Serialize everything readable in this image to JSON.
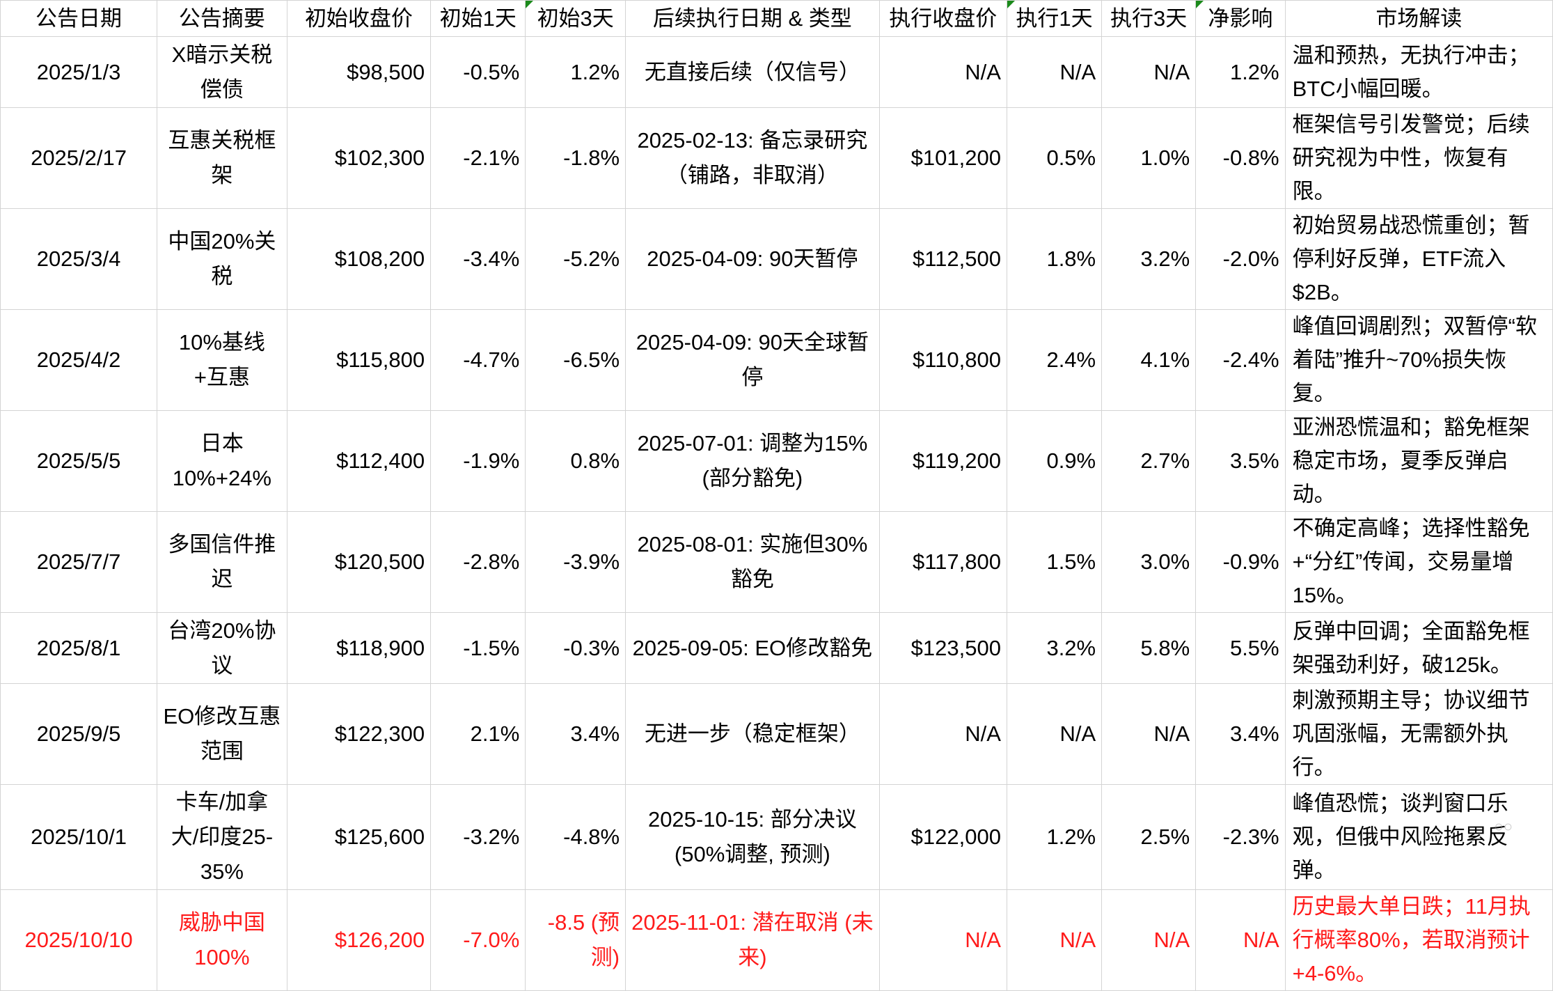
{
  "columns": [
    "公告日期",
    "公告摘要",
    "初始收盘价",
    "初始1天",
    "初始3天",
    "后续执行日期 & 类型",
    "执行收盘价",
    "执行1天",
    "执行3天",
    "净影响",
    "市场解读"
  ],
  "rows": [
    {
      "date": "2025/1/3",
      "summary": "X暗示关税偿债",
      "init_close": "$98,500",
      "init_1d": "-0.5%",
      "init_3d": "1.2%",
      "follow": "无直接后续（仅信号）",
      "exec_close": "N/A",
      "exec_1d": "N/A",
      "exec_3d": "N/A",
      "net": "1.2%",
      "market": "温和预热，无执行冲击；BTC小幅回暖。"
    },
    {
      "date": "2025/2/17",
      "summary": "互惠关税框架",
      "init_close": "$102,300",
      "init_1d": "-2.1%",
      "init_3d": "-1.8%",
      "follow": "2025-02-13: 备忘录研究（铺路，非取消）",
      "exec_close": "$101,200",
      "exec_1d": "0.5%",
      "exec_3d": "1.0%",
      "net": "-0.8%",
      "market": "框架信号引发警觉；后续研究视为中性，恢复有限。"
    },
    {
      "date": "2025/3/4",
      "summary": "中国20%关税",
      "init_close": "$108,200",
      "init_1d": "-3.4%",
      "init_3d": "-5.2%",
      "follow": "2025-04-09: 90天暂停",
      "exec_close": "$112,500",
      "exec_1d": "1.8%",
      "exec_3d": "3.2%",
      "net": "-2.0%",
      "market": "初始贸易战恐慌重创；暂停利好反弹，ETF流入$2B。"
    },
    {
      "date": "2025/4/2",
      "summary": "10%基线+互惠",
      "init_close": "$115,800",
      "init_1d": "-4.7%",
      "init_3d": "-6.5%",
      "follow": "2025-04-09: 90天全球暂停",
      "exec_close": "$110,800",
      "exec_1d": "2.4%",
      "exec_3d": "4.1%",
      "net": "-2.4%",
      "market": "峰值回调剧烈；双暂停“软着陆”推升~70%损失恢复。"
    },
    {
      "date": "2025/5/5",
      "summary": "日本10%+24%",
      "init_close": "$112,400",
      "init_1d": "-1.9%",
      "init_3d": "0.8%",
      "follow": "2025-07-01: 调整为15% (部分豁免)",
      "exec_close": "$119,200",
      "exec_1d": "0.9%",
      "exec_3d": "2.7%",
      "net": "3.5%",
      "market": "亚洲恐慌温和；豁免框架稳定市场，夏季反弹启动。"
    },
    {
      "date": "2025/7/7",
      "summary": "多国信件推迟",
      "init_close": "$120,500",
      "init_1d": "-2.8%",
      "init_3d": "-3.9%",
      "follow": "2025-08-01: 实施但30%豁免",
      "exec_close": "$117,800",
      "exec_1d": "1.5%",
      "exec_3d": "3.0%",
      "net": "-0.9%",
      "market": "不确定高峰；选择性豁免+“分红”传闻，交易量增15%。"
    },
    {
      "date": "2025/8/1",
      "summary": "台湾20%协议",
      "init_close": "$118,900",
      "init_1d": "-1.5%",
      "init_3d": "-0.3%",
      "follow": "2025-09-05: EO修改豁免",
      "exec_close": "$123,500",
      "exec_1d": "3.2%",
      "exec_3d": "5.8%",
      "net": "5.5%",
      "market": "反弹中回调；全面豁免框架强劲利好，破125k。"
    },
    {
      "date": "2025/9/5",
      "summary": "EO修改互惠范围",
      "init_close": "$122,300",
      "init_1d": "2.1%",
      "init_3d": "3.4%",
      "follow": "无进一步（稳定框架）",
      "exec_close": "N/A",
      "exec_1d": "N/A",
      "exec_3d": "N/A",
      "net": "3.4%",
      "market": "刺激预期主导；协议细节巩固涨幅，无需额外执行。"
    },
    {
      "date": "2025/10/1",
      "summary": "卡车/加拿大/印度25-35%",
      "init_close": "$125,600",
      "init_1d": "-3.2%",
      "init_3d": "-4.8%",
      "follow": "2025-10-15: 部分决议 (50%调整, 预测)",
      "exec_close": "$122,000",
      "exec_1d": "1.2%",
      "exec_3d": "2.5%",
      "net": "-2.3%",
      "market": "峰值恐慌；谈判窗口乐观，但俄中风险拖累反弹。"
    },
    {
      "date": "2025/10/10",
      "summary": "威胁中国100%",
      "init_close": "$126,200",
      "init_1d": "-7.0%",
      "init_3d": "-8.5 (预测)",
      "follow": "2025-11-01: 潜在取消 (未来)",
      "exec_close": "N/A",
      "exec_1d": "N/A",
      "exec_3d": "N/A",
      "net": "N/A",
      "market": "历史最大单日跌；11月执行概率80%，若取消预计+4-6%。",
      "highlight": true
    }
  ],
  "colors": {
    "highlight_text": "#ff1a1a",
    "grid": "#d4d4d4",
    "comment_flag": "#1a8a1a"
  }
}
